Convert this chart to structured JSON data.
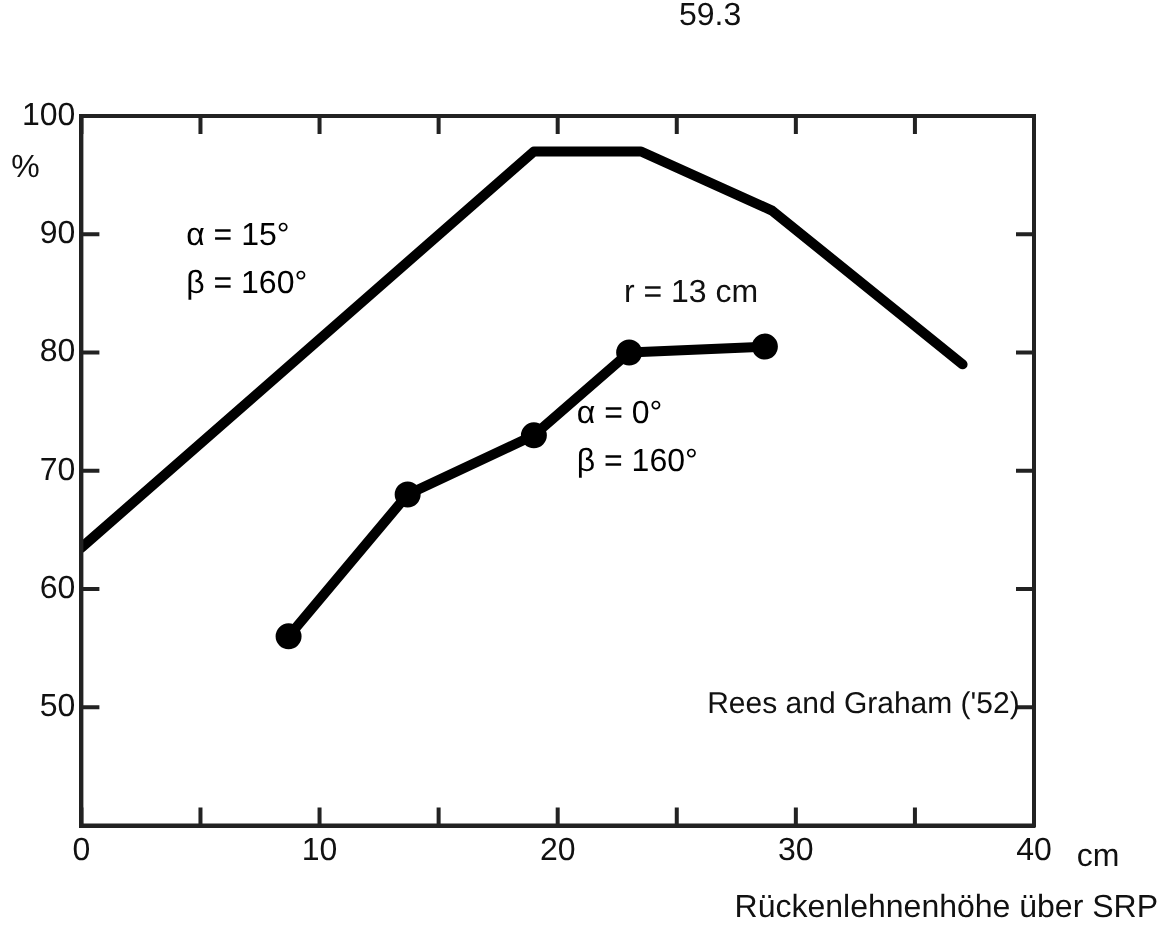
{
  "chart_data": {
    "type": "line",
    "ylabel": "%",
    "xlabel": "Rückenlehnenhöhe über SRP",
    "annotations": [
      "59.3",
      "r = 13 cm",
      "Rees and Graham ('52)",
      "cm"
    ],
    "xlim": [
      0,
      40
    ],
    "xticks": [
      0,
      {
        "value": 5,
        "label": null
      },
      10,
      {
        "value": 15,
        "label": null
      },
      20,
      {
        "value": 25,
        "label": null
      },
      30,
      {
        "value": 35,
        "label": null
      },
      40
    ],
    "ylim": [
      40,
      100
    ],
    "yticks": [
      50,
      60,
      70,
      80,
      90,
      100
    ],
    "grid": false,
    "legend": false,
    "line_style": "solid",
    "series": [
      {
        "name": "α = 15° β = 160°",
        "color": "#000000",
        "marker": "none",
        "x": [
          0,
          19,
          23.5,
          29,
          37
        ],
        "values": [
          63.5,
          97,
          97,
          92,
          79
        ]
      },
      {
        "name": "α = 0° β = 160°",
        "color": "#000000",
        "marker": "circle",
        "x": [
          8.7,
          13.7,
          19,
          23,
          28.7
        ],
        "values": [
          56,
          68,
          73,
          80,
          80.5
        ]
      }
    ]
  }
}
